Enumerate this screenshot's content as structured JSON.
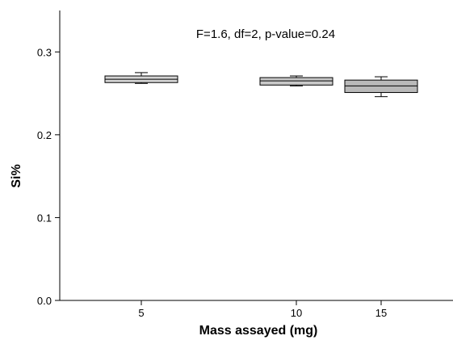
{
  "chart_data": {
    "type": "box",
    "categories": [
      "5",
      "10",
      "15"
    ],
    "x_tick_labels": [
      "5",
      "10",
      "15"
    ],
    "xlabel": "Mass assayed (mg)",
    "ylabel": "Si%",
    "ylim": [
      0,
      0.35
    ],
    "y_ticks": [
      0.0,
      0.1,
      0.2,
      0.3
    ],
    "y_tick_labels": [
      "0.0",
      "0.1",
      "0.2",
      "0.3"
    ],
    "grid": false,
    "annotation": "F=1.6, df=2, p-value=0.24",
    "box_fill_colors": [
      "#d3d3d3",
      "#c8c8c8",
      "#b9b9b9"
    ],
    "boxes": [
      {
        "category": "5",
        "whisker_low": 0.262,
        "q1": 0.263,
        "median": 0.267,
        "q3": 0.271,
        "whisker_high": 0.275
      },
      {
        "category": "10",
        "whisker_low": 0.259,
        "q1": 0.26,
        "median": 0.265,
        "q3": 0.269,
        "whisker_high": 0.271
      },
      {
        "category": "15",
        "whisker_low": 0.246,
        "q1": 0.251,
        "median": 0.259,
        "q3": 0.266,
        "whisker_high": 0.27
      }
    ]
  }
}
